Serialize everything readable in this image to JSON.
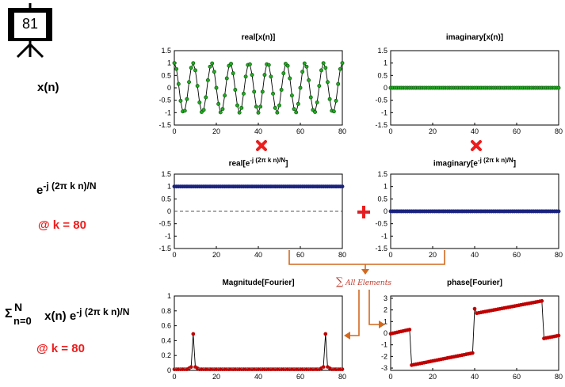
{
  "slide_number": "81",
  "colors": {
    "accent_red": "#ee1c1c",
    "orange": "#d2691e",
    "green": "#22aa22",
    "navy": "#1a237e",
    "marker_red": "#c00000"
  },
  "left": {
    "signal_label": "x(n)",
    "kernel": {
      "base": "e",
      "exp": "-j (2π k n)/N"
    },
    "at_k_1": "@ k = 80",
    "sum": {
      "sigma": "Σ",
      "upper": "N",
      "lower": "n=0",
      "body": "x(n) e",
      "exp": "-j (2π k n)/N"
    },
    "at_k_2": "@ k = 80"
  },
  "sum_label": "All Elements",
  "sum_symbol": "∑",
  "plots": {
    "real_x": {
      "title": "real[x(n)]",
      "yticks": [
        "1.5",
        "1",
        "0.5",
        "0",
        "-0.5",
        "-1",
        "-1.5"
      ],
      "xticks": [
        "0",
        "20",
        "40",
        "60",
        "80"
      ]
    },
    "imag_x": {
      "title": "imaginary[x(n)]",
      "yticks": [
        "1.5",
        "1",
        "0.5",
        "0",
        "-0.5",
        "-1",
        "-1.5"
      ],
      "xticks": [
        "0",
        "20",
        "40",
        "60",
        "80"
      ]
    },
    "real_e": {
      "title_base": "real[e",
      "title_exp": "-j (2π k n)/N",
      "title_end": "]",
      "yticks": [
        "1.5",
        "1",
        "0.5",
        "0",
        "-0.5",
        "-1",
        "-1.5"
      ],
      "xticks": [
        "0",
        "20",
        "40",
        "60",
        "80"
      ]
    },
    "imag_e": {
      "title_base": "imaginary[e",
      "title_exp": "-j (2π k n)/N",
      "title_end": "]",
      "yticks": [
        "1.5",
        "1",
        "0.5",
        "0",
        "-0.5",
        "-1",
        "-1.5"
      ],
      "xticks": [
        "0",
        "20",
        "40",
        "60",
        "80"
      ]
    },
    "mag": {
      "title": "Magnitude[Fourier]",
      "yticks": [
        "1",
        "0.8",
        "0.6",
        "0.4",
        "0.2",
        "0"
      ],
      "xticks": [
        "0",
        "20",
        "40",
        "60",
        "80"
      ]
    },
    "phase": {
      "title": "phase[Fourier]",
      "yticks": [
        "3",
        "2",
        "1",
        "0",
        "-1",
        "-2",
        "-3"
      ],
      "xticks": [
        "0",
        "20",
        "40",
        "60",
        "80"
      ]
    }
  }
}
